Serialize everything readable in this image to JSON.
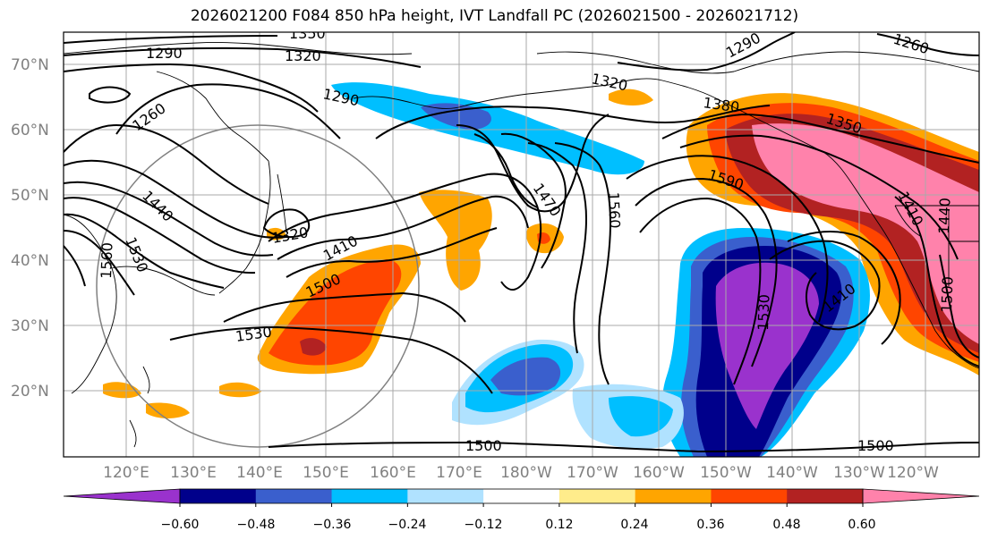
{
  "title": "2026021200 F084 850 hPa height, IVT Landfall PC (2026021500 - 2026021712)",
  "lat_labels": [
    "70°N",
    "60°N",
    "50°N",
    "40°N",
    "30°N",
    "20°N"
  ],
  "lon_labels": [
    "120°E",
    "130°E",
    "140°E",
    "150°E",
    "160°E",
    "170°E",
    "180°W",
    "170°W",
    "160°W",
    "150°W",
    "140°W",
    "130°W",
    "120°W"
  ],
  "contour_labels": [
    "1350",
    "1320",
    "1290",
    "1260",
    "1290",
    "1290",
    "1320",
    "1260",
    "1380",
    "1350",
    "1440",
    "1560",
    "1530",
    "1320",
    "1410",
    "1500",
    "1470",
    "1560",
    "1590",
    "1410",
    "1530",
    "1530",
    "1410",
    "1500",
    "1500",
    "1500",
    "1440"
  ],
  "colorbar": {
    "colors": [
      "#9a32cd",
      "#00008b",
      "#3a5fcd",
      "#00bfff",
      "#b0e2ff",
      "#ffffff",
      "#ffec8b",
      "#ffa500",
      "#ff4500",
      "#b22222",
      "#ff82ab"
    ],
    "tick_labels": [
      "−0.60",
      "−0.48",
      "−0.36",
      "−0.24",
      "−0.12",
      "0.12",
      "0.24",
      "0.36",
      "0.48",
      "0.60"
    ]
  }
}
